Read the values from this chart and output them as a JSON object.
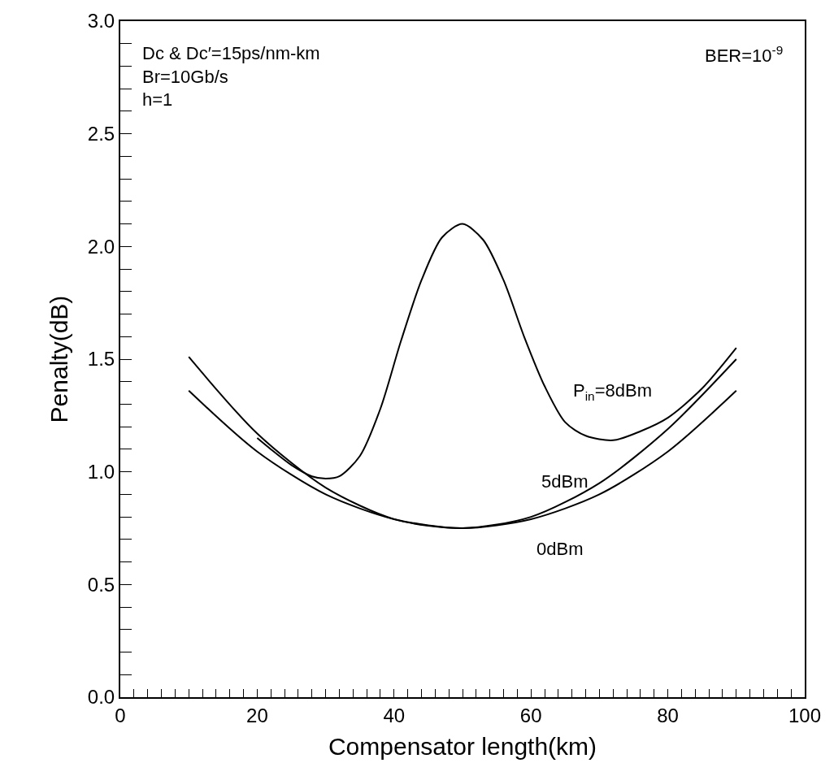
{
  "chart_data": {
    "type": "line",
    "xlabel": "Compensator length(km)",
    "ylabel": "Penalty(dB)",
    "xlim": [
      0,
      100
    ],
    "ylim": [
      0,
      3.0
    ],
    "xticks": [
      0,
      {
        "value": 2,
        "label": null
      },
      {
        "value": 4,
        "label": null
      },
      {
        "value": 6,
        "label": null
      },
      {
        "value": 8,
        "label": null
      },
      {
        "value": 10,
        "label": null
      },
      {
        "value": 12,
        "label": null
      },
      {
        "value": 14,
        "label": null
      },
      {
        "value": 16,
        "label": null
      },
      {
        "value": 18,
        "label": null
      },
      20,
      {
        "value": 22,
        "label": null
      },
      {
        "value": 24,
        "label": null
      },
      {
        "value": 26,
        "label": null
      },
      {
        "value": 28,
        "label": null
      },
      {
        "value": 30,
        "label": null
      },
      {
        "value": 32,
        "label": null
      },
      {
        "value": 34,
        "label": null
      },
      {
        "value": 36,
        "label": null
      },
      {
        "value": 38,
        "label": null
      },
      40,
      {
        "value": 42,
        "label": null
      },
      {
        "value": 44,
        "label": null
      },
      {
        "value": 46,
        "label": null
      },
      {
        "value": 48,
        "label": null
      },
      {
        "value": 50,
        "label": null
      },
      {
        "value": 52,
        "label": null
      },
      {
        "value": 54,
        "label": null
      },
      {
        "value": 56,
        "label": null
      },
      {
        "value": 58,
        "label": null
      },
      60,
      {
        "value": 62,
        "label": null
      },
      {
        "value": 64,
        "label": null
      },
      {
        "value": 66,
        "label": null
      },
      {
        "value": 68,
        "label": null
      },
      {
        "value": 70,
        "label": null
      },
      {
        "value": 72,
        "label": null
      },
      {
        "value": 74,
        "label": null
      },
      {
        "value": 76,
        "label": null
      },
      {
        "value": 78,
        "label": null
      },
      80,
      {
        "value": 82,
        "label": null
      },
      {
        "value": 84,
        "label": null
      },
      {
        "value": 86,
        "label": null
      },
      {
        "value": 88,
        "label": null
      },
      {
        "value": 90,
        "label": null
      },
      {
        "value": 92,
        "label": null
      },
      {
        "value": 94,
        "label": null
      },
      {
        "value": 96,
        "label": null
      },
      {
        "value": 98,
        "label": null
      },
      100
    ],
    "yticks": [
      {
        "value": 0,
        "label": "0.0"
      },
      {
        "value": 0.1,
        "label": null
      },
      {
        "value": 0.2,
        "label": null
      },
      {
        "value": 0.3,
        "label": null
      },
      {
        "value": 0.4,
        "label": null
      },
      0.5,
      {
        "value": 0.6,
        "label": null
      },
      {
        "value": 0.7,
        "label": null
      },
      {
        "value": 0.8,
        "label": null
      },
      {
        "value": 0.9,
        "label": null
      },
      {
        "value": 1.0,
        "label": "1.0"
      },
      {
        "value": 1.1,
        "label": null
      },
      {
        "value": 1.2,
        "label": null
      },
      {
        "value": 1.3,
        "label": null
      },
      {
        "value": 1.4,
        "label": null
      },
      1.5,
      {
        "value": 1.6,
        "label": null
      },
      {
        "value": 1.7,
        "label": null
      },
      {
        "value": 1.8,
        "label": null
      },
      {
        "value": 1.9,
        "label": null
      },
      {
        "value": 2.0,
        "label": "2.0"
      },
      {
        "value": 2.1,
        "label": null
      },
      {
        "value": 2.2,
        "label": null
      },
      {
        "value": 2.3,
        "label": null
      },
      {
        "value": 2.4,
        "label": null
      },
      2.5,
      {
        "value": 2.6,
        "label": null
      },
      {
        "value": 2.7,
        "label": null
      },
      {
        "value": 2.8,
        "label": null
      },
      {
        "value": 2.9,
        "label": null
      },
      {
        "value": 3.0,
        "label": "3.0"
      }
    ],
    "legend": false,
    "marker": "none",
    "line_style": "solid",
    "series": [
      {
        "name": "P$_{in}$=8dBm",
        "color": "#000000",
        "x": [
          20,
          22,
          25,
          28,
          30,
          32,
          35,
          38,
          41,
          44,
          47,
          50,
          53,
          56,
          59,
          62,
          65,
          68,
          72,
          76,
          80,
          85,
          90
        ],
        "values": [
          1.15,
          1.1,
          1.03,
          0.98,
          0.97,
          0.98,
          1.07,
          1.28,
          1.58,
          1.85,
          2.04,
          2.1,
          2.03,
          1.85,
          1.6,
          1.38,
          1.22,
          1.16,
          1.14,
          1.18,
          1.24,
          1.37,
          1.55
        ]
      },
      {
        "name": "5dBm",
        "color": "#000000",
        "x": [
          10,
          20,
          30,
          40,
          50,
          60,
          70,
          80,
          90
        ],
        "values": [
          1.51,
          1.17,
          0.93,
          0.79,
          0.75,
          0.8,
          0.95,
          1.19,
          1.5
        ]
      },
      {
        "name": "0dBm",
        "color": "#000000",
        "x": [
          10,
          20,
          30,
          40,
          50,
          60,
          70,
          80,
          90
        ],
        "values": [
          1.36,
          1.09,
          0.9,
          0.79,
          0.75,
          0.79,
          0.9,
          1.09,
          1.36
        ]
      }
    ],
    "annotations": [
      "Dc & Dc′=15ps/nm-km\nBr=10Gb/s\nh=1",
      "BER=10$^{-9}$"
    ]
  }
}
